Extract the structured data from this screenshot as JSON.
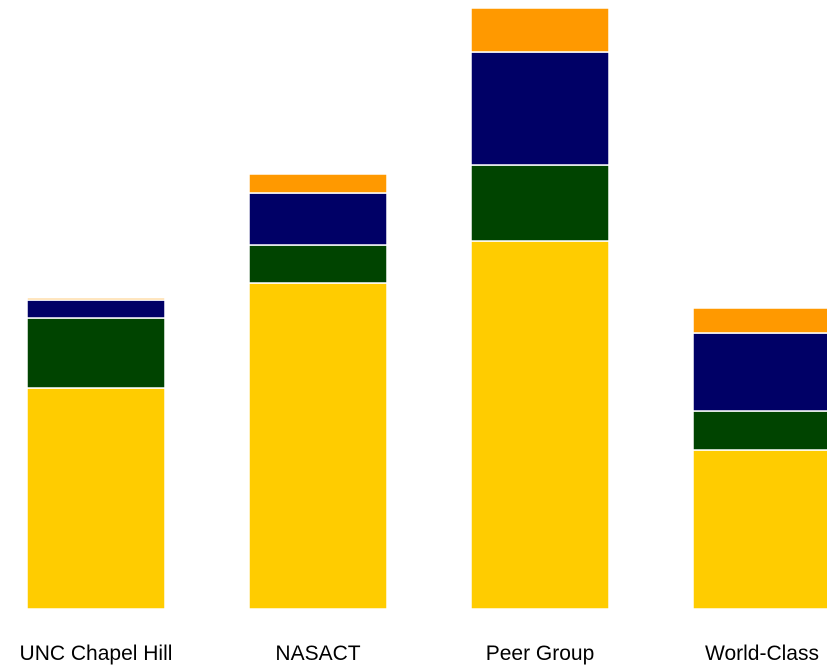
{
  "chart_data": {
    "type": "bar",
    "stacked": true,
    "categories": [
      "UNC Chapel Hill",
      "NASACT",
      "Peer Group",
      "World-Class"
    ],
    "series": [
      {
        "color": "#FFCC00",
        "values": [
          221,
          326,
          368,
          159
        ]
      },
      {
        "color": "#004400",
        "values": [
          70,
          38,
          76,
          39
        ]
      },
      {
        "color": "#000066",
        "values": [
          18,
          52,
          113,
          78
        ]
      },
      {
        "color": "#FF9900",
        "values": [
          2,
          19,
          44,
          25
        ]
      }
    ],
    "ylim": [
      0,
      600
    ],
    "grid": false,
    "legend": "none",
    "title": "",
    "xlabel": "",
    "ylabel": ""
  }
}
